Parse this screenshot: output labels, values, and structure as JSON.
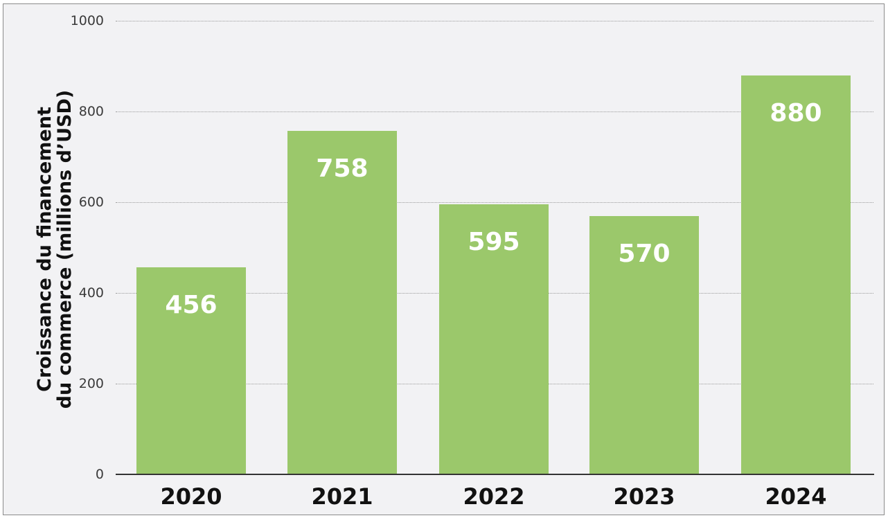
{
  "chart_data": {
    "type": "bar",
    "title": "",
    "xlabel": "",
    "ylabel": "Croissance du financement du commerce (millions d'USD)",
    "ylabel_lines": [
      "Croissance du financement",
      "du commerce (millions d’USD)"
    ],
    "categories": [
      "2020",
      "2021",
      "2022",
      "2023",
      "2024"
    ],
    "values": [
      456,
      758,
      595,
      570,
      880
    ],
    "data_labels": [
      "456",
      "758",
      "595",
      "570",
      "880"
    ],
    "ylim": [
      0,
      1000
    ],
    "yticks": [
      "0",
      "200",
      "400",
      "600",
      "800",
      "1000"
    ],
    "grid": true,
    "legend": null,
    "bar_color": "#9bc86b"
  }
}
